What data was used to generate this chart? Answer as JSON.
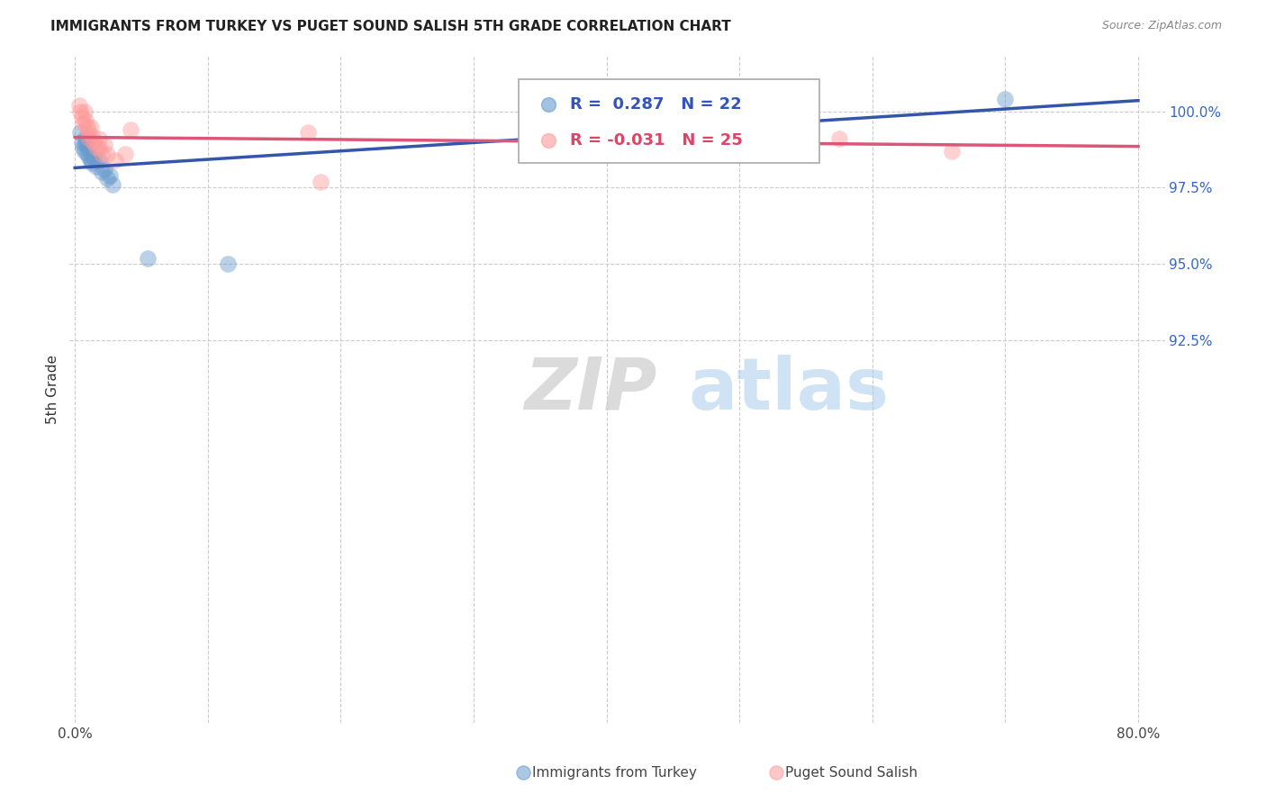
{
  "title": "IMMIGRANTS FROM TURKEY VS PUGET SOUND SALISH 5TH GRADE CORRELATION CHART",
  "source": "Source: ZipAtlas.com",
  "ylabel": "5th Grade",
  "ymin": 80.0,
  "ymax": 101.8,
  "xmin": -0.004,
  "xmax": 0.82,
  "blue_color": "#6699cc",
  "pink_color": "#ff9999",
  "line_blue": "#3355aa",
  "line_pink": "#dd5577",
  "legend_R_blue": "0.287",
  "legend_N_blue": "22",
  "legend_R_pink": "-0.031",
  "legend_N_pink": "25",
  "blue_x": [
    0.004,
    0.005,
    0.006,
    0.007,
    0.007,
    0.008,
    0.009,
    0.01,
    0.011,
    0.012,
    0.013,
    0.014,
    0.016,
    0.018,
    0.02,
    0.022,
    0.024,
    0.026,
    0.028,
    0.055,
    0.115,
    0.7
  ],
  "blue_y": [
    99.3,
    99.0,
    98.8,
    99.1,
    98.7,
    98.9,
    98.6,
    98.8,
    98.5,
    98.4,
    98.3,
    98.5,
    98.2,
    98.4,
    98.0,
    98.1,
    97.8,
    97.9,
    97.6,
    95.2,
    95.0,
    100.4
  ],
  "pink_x": [
    0.003,
    0.004,
    0.005,
    0.006,
    0.007,
    0.008,
    0.009,
    0.01,
    0.011,
    0.012,
    0.013,
    0.014,
    0.016,
    0.018,
    0.018,
    0.02,
    0.022,
    0.024,
    0.03,
    0.038,
    0.042,
    0.175,
    0.185,
    0.575,
    0.66
  ],
  "pink_y": [
    100.2,
    100.0,
    99.8,
    99.6,
    100.0,
    99.7,
    99.5,
    99.3,
    99.1,
    99.5,
    99.2,
    99.0,
    98.8,
    99.1,
    98.8,
    98.6,
    98.9,
    98.6,
    98.4,
    98.6,
    99.4,
    99.3,
    97.7,
    99.1,
    98.7
  ],
  "blue_trendline_x": [
    0.0,
    0.8
  ],
  "blue_trendline_y": [
    98.15,
    100.35
  ],
  "pink_trendline_x": [
    0.0,
    0.8
  ],
  "pink_trendline_y": [
    99.15,
    98.85
  ],
  "ytick_positions": [
    92.5,
    95.0,
    97.5,
    100.0
  ],
  "ytick_labels": [
    "92.5%",
    "95.0%",
    "97.5%",
    "100.0%"
  ],
  "xtick_positions": [
    0.0,
    0.1,
    0.2,
    0.3,
    0.4,
    0.5,
    0.6,
    0.7,
    0.8
  ],
  "xtick_labels": [
    "0.0%",
    "",
    "",
    "",
    "",
    "",
    "",
    "",
    "80.0%"
  ],
  "watermark_zip": "ZIP",
  "watermark_atlas": "atlas",
  "background_color": "#ffffff",
  "grid_color": "#cccccc"
}
